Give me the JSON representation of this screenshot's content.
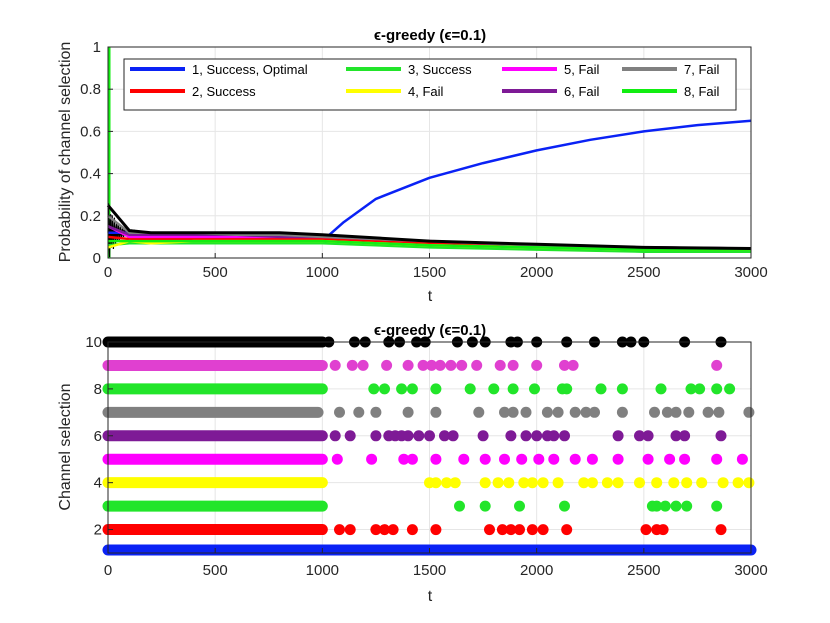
{
  "colors": {
    "c1": "#0a22f5",
    "c2": "#ff0000",
    "c3": "#22e52a",
    "c4": "#ffff00",
    "c5": "#ff00ff",
    "c6": "#7e1a96",
    "c7": "#808080",
    "c8": "#11ee11",
    "c9": "#22e52a",
    "c10": "#000000",
    "c5b": "#e040d0"
  },
  "chart_data": [
    {
      "type": "line",
      "title": "ϵ-greedy (ϵ=0.1)",
      "xlabel": "t",
      "ylabel": "Probability of channel selection",
      "xlim": [
        0,
        3000
      ],
      "ylim": [
        0,
        1
      ],
      "xticks": [
        "0",
        "500",
        "1000",
        "1500",
        "2000",
        "2500",
        "3000"
      ],
      "yticks": [
        "0",
        "0.2",
        "0.4",
        "0.6",
        "0.8",
        "1"
      ],
      "grid": true,
      "legend_position": "top",
      "series": [
        {
          "name": "1, Success, Optimal",
          "x": [
            0,
            100,
            200,
            400,
            600,
            800,
            1000,
            1100,
            1250,
            1500,
            1750,
            2000,
            2250,
            2500,
            2750,
            3000
          ],
          "y": [
            0.12,
            0.12,
            0.1,
            0.09,
            0.09,
            0.08,
            0.08,
            0.17,
            0.28,
            0.38,
            0.45,
            0.51,
            0.56,
            0.6,
            0.63,
            0.65
          ]
        },
        {
          "name": "2, Success",
          "x": [
            0,
            100,
            200,
            400,
            600,
            800,
            1000,
            1500,
            2000,
            2500,
            3000
          ],
          "y": [
            0.1,
            0.09,
            0.09,
            0.09,
            0.09,
            0.09,
            0.09,
            0.07,
            0.05,
            0.04,
            0.035
          ]
        },
        {
          "name": "3, Success",
          "x": [
            0,
            100,
            200,
            400,
            600,
            800,
            1000,
            1500,
            2000,
            2500,
            3000
          ],
          "y": [
            0.06,
            0.07,
            0.07,
            0.07,
            0.07,
            0.07,
            0.07,
            0.05,
            0.04,
            0.03,
            0.03
          ]
        },
        {
          "name": "4, Fail",
          "x": [
            0,
            100,
            200,
            400,
            600,
            800,
            1000,
            1500,
            2000,
            2500,
            3000
          ],
          "y": [
            0.05,
            0.08,
            0.07,
            0.08,
            0.08,
            0.08,
            0.08,
            0.06,
            0.05,
            0.04,
            0.04
          ]
        },
        {
          "name": "5, Fail",
          "x": [
            0,
            100,
            200,
            400,
            600,
            800,
            1000,
            1500,
            2000,
            2500,
            3000
          ],
          "y": [
            0.15,
            0.1,
            0.1,
            0.1,
            0.1,
            0.1,
            0.1,
            0.08,
            0.06,
            0.05,
            0.045
          ]
        },
        {
          "name": "6, Fail",
          "x": [
            0,
            100,
            200,
            400,
            600,
            800,
            1000,
            1500,
            2000,
            2500,
            3000
          ],
          "y": [
            0.15,
            0.11,
            0.11,
            0.11,
            0.11,
            0.1,
            0.1,
            0.08,
            0.06,
            0.05,
            0.045
          ]
        },
        {
          "name": "7, Fail",
          "x": [
            0,
            100,
            200,
            400,
            600,
            800,
            1000,
            1500,
            2000,
            2500,
            3000
          ],
          "y": [
            0.2,
            0.12,
            0.12,
            0.12,
            0.11,
            0.11,
            0.1,
            0.08,
            0.06,
            0.05,
            0.045
          ]
        },
        {
          "name": "8, Fail",
          "x": [
            0,
            100,
            200,
            400,
            600,
            800,
            1000,
            1500,
            2000,
            2500,
            3000
          ],
          "y": [
            0.08,
            0.08,
            0.08,
            0.08,
            0.08,
            0.08,
            0.08,
            0.06,
            0.05,
            0.04,
            0.04
          ]
        },
        {
          "name": "",
          "x": [
            0,
            100,
            200,
            400,
            600,
            800,
            1000,
            1500,
            2000,
            2500,
            3000
          ],
          "y": [
            0.25,
            0.13,
            0.12,
            0.12,
            0.12,
            0.12,
            0.11,
            0.08,
            0.065,
            0.05,
            0.045
          ]
        }
      ]
    },
    {
      "type": "scatter",
      "title": "ϵ-greedy (ϵ=0.1)",
      "xlabel": "t",
      "ylabel": "Channel selection",
      "xlim": [
        0,
        3000
      ],
      "ylim": [
        1,
        10
      ],
      "xticks": [
        "0",
        "500",
        "1000",
        "1500",
        "2000",
        "2500",
        "3000"
      ],
      "yticks": [
        "2",
        "4",
        "6",
        "8",
        "10"
      ],
      "grid": true,
      "dense_until": 1000,
      "series": [
        {
          "channel": 1,
          "x": [
            0,
            500,
            1000,
            1500,
            2000,
            2500,
            3000
          ],
          "continuous": true
        },
        {
          "channel": 2,
          "x": [
            1080,
            1130,
            1250,
            1290,
            1330,
            1420,
            1530,
            1780,
            1840,
            1880,
            1920,
            1980,
            2030,
            2140,
            2510,
            2560,
            2590,
            2860
          ]
        },
        {
          "channel": 3,
          "x": [
            1640,
            1760,
            1920,
            2130,
            2540,
            2560,
            2600,
            2650,
            2700,
            2840
          ]
        },
        {
          "channel": 4,
          "x": [
            1500,
            1530,
            1580,
            1620,
            1760,
            1820,
            1870,
            1940,
            1980,
            2030,
            2100,
            2220,
            2260,
            2330,
            2380,
            2480,
            2560,
            2640,
            2700,
            2770,
            2870,
            2940,
            2990
          ]
        },
        {
          "channel": 5,
          "x": [
            1070,
            1230,
            1380,
            1420,
            1530,
            1660,
            1760,
            1850,
            1930,
            2010,
            2080,
            2180,
            2260,
            2380,
            2520,
            2620,
            2690,
            2840,
            2960
          ]
        },
        {
          "channel": 6,
          "x": [
            1060,
            1130,
            1250,
            1310,
            1340,
            1370,
            1400,
            1450,
            1500,
            1570,
            1610,
            1750,
            1880,
            1950,
            2000,
            2050,
            2080,
            2130,
            2380,
            2480,
            2520,
            2650,
            2690,
            2860
          ]
        },
        {
          "channel": 7,
          "x": [
            1080,
            1170,
            1250,
            1400,
            1530,
            1730,
            1850,
            1890,
            1950,
            2050,
            2100,
            2180,
            2230,
            2270,
            2400,
            2550,
            2610,
            2650,
            2710,
            2800,
            2850,
            2990
          ]
        },
        {
          "channel": 8,
          "x": [
            1240,
            1290,
            1370,
            1420,
            1530,
            1690,
            1800,
            1890,
            1990,
            2120,
            2140,
            2300,
            2400,
            2580,
            2720,
            2760,
            2840,
            2900
          ]
        },
        {
          "channel": 9,
          "x": [
            1060,
            1140,
            1190,
            1300,
            1400,
            1470,
            1510,
            1550,
            1600,
            1650,
            1720,
            1830,
            1890,
            2000,
            2130,
            2170,
            2840
          ]
        },
        {
          "channel": 10,
          "x": [
            1030,
            1150,
            1200,
            1310,
            1360,
            1440,
            1480,
            1630,
            1700,
            1760,
            1880,
            1910,
            2000,
            2140,
            2270,
            2400,
            2440,
            2500,
            2690,
            2860
          ]
        }
      ]
    }
  ]
}
